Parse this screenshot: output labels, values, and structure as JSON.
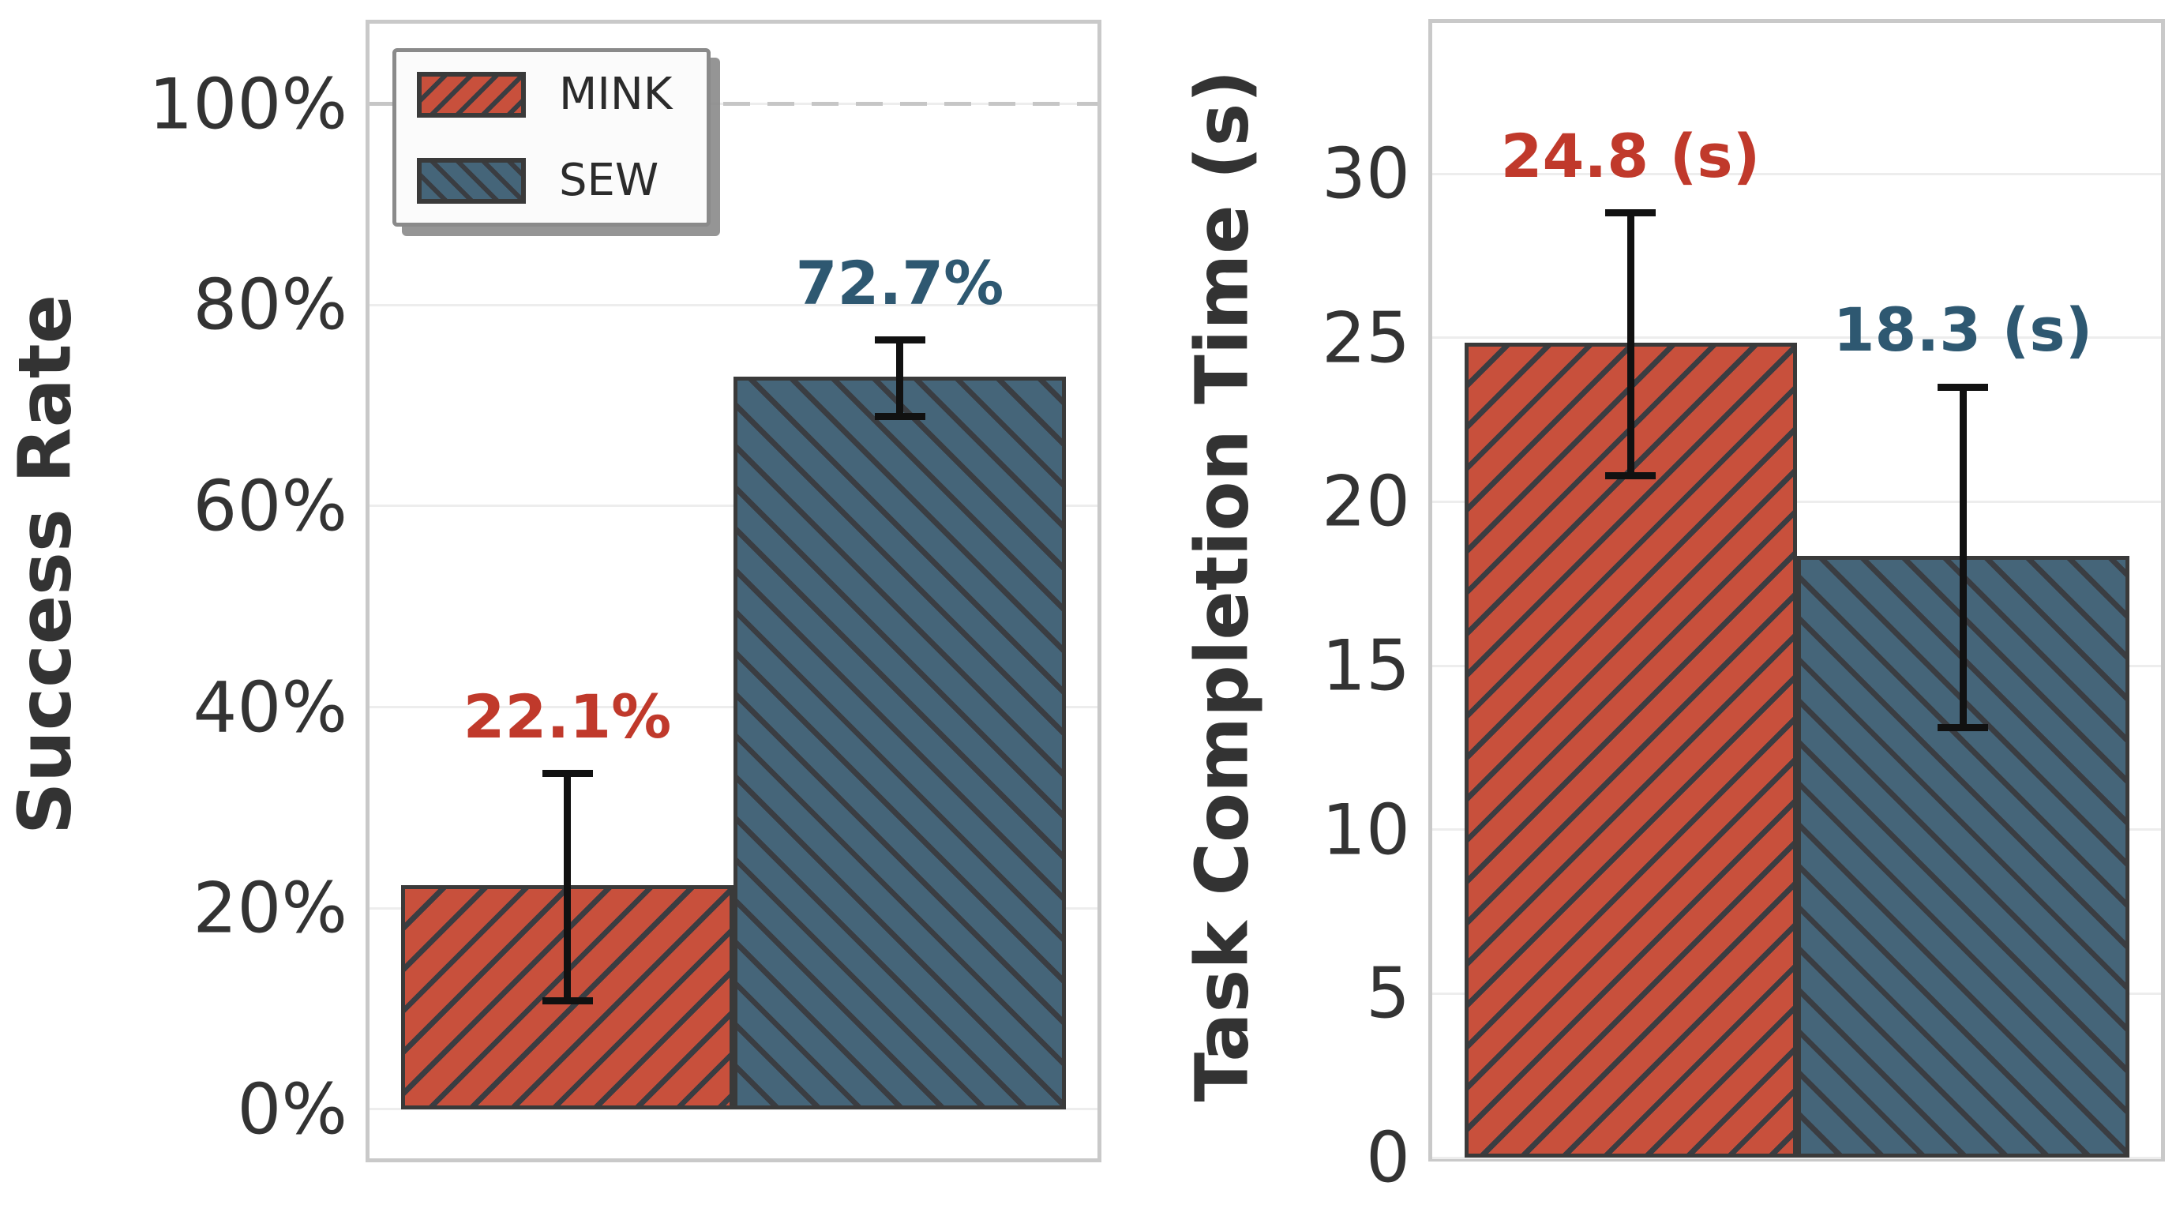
{
  "figure_kind": "two bar subplots comparing MINK vs SEW",
  "colors": {
    "mink_fill": "#c8503c",
    "mink_label": "#c0392b",
    "sew_fill": "#456579",
    "sew_label": "#2e5871",
    "hatch": "#3a3d42",
    "bar_edge": "#3a3a3a",
    "error_bar": "#111111",
    "spine": "#c9c9c9",
    "grid": "#ededed",
    "ref_dash": "#c6c6c6",
    "tick_text": "#333333"
  },
  "legend": {
    "position": "upper left of first subplot",
    "items": [
      {
        "label": "MINK",
        "hatch": "/"
      },
      {
        "label": "SEW",
        "hatch": "\\"
      }
    ]
  },
  "chart_data": [
    {
      "type": "bar",
      "title": "",
      "ylabel": "Success Rate",
      "categories": [
        "MINK",
        "SEW"
      ],
      "values": [
        22.1,
        72.7
      ],
      "errors": [
        11.3,
        3.8
      ],
      "value_labels": [
        "22.1%",
        "72.7%"
      ],
      "yticks": [
        0,
        20,
        40,
        60,
        80,
        100
      ],
      "ytick_labels": [
        "0%",
        "20%",
        "40%",
        "60%",
        "80%",
        "100%"
      ],
      "ylim": [
        -4.9,
        108
      ],
      "ref_line": 100,
      "grid": true,
      "hatches": [
        "/",
        "\\"
      ],
      "bar_hatch_colors": [
        "#c8503c",
        "#456579"
      ]
    },
    {
      "type": "bar",
      "title": "",
      "ylabel": "Task Completion Time (s)",
      "categories": [
        "MINK",
        "SEW"
      ],
      "values": [
        24.8,
        18.3
      ],
      "errors": [
        4.0,
        5.2
      ],
      "value_labels": [
        "24.8 (s)",
        "18.3 (s)"
      ],
      "yticks": [
        0,
        5,
        10,
        15,
        20,
        25,
        30
      ],
      "ytick_labels": [
        "0",
        "5",
        "10",
        "15",
        "20",
        "25",
        "30"
      ],
      "ylim": [
        0,
        34.6
      ],
      "grid": true,
      "hatches": [
        "/",
        "\\"
      ],
      "bar_hatch_colors": [
        "#c8503c",
        "#456579"
      ]
    }
  ]
}
